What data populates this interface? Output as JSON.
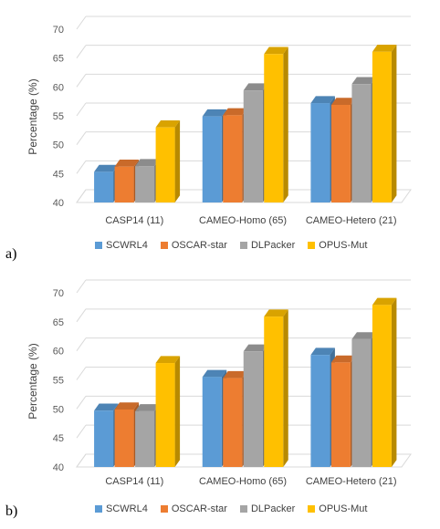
{
  "panels": [
    {
      "letter": "a)",
      "chart_data": {
        "type": "bar",
        "ylabel": "Percentage (%)",
        "ylim": [
          40,
          70
        ],
        "yticks": [
          40,
          45,
          50,
          55,
          60,
          65,
          70
        ],
        "grid": true,
        "legend_position": "bottom",
        "categories": [
          "CASP14 (11)",
          "CAMEO-Homo (65)",
          "CAMEO-Hetero (21)"
        ],
        "series": [
          {
            "name": "SCWRL4",
            "color": "#5b9bd5",
            "values": [
              45.3,
              54.9,
              57.2
            ]
          },
          {
            "name": "OSCAR-star",
            "color": "#ed7d31",
            "values": [
              46.2,
              55.1,
              56.9
            ]
          },
          {
            "name": "DLPacker",
            "color": "#a5a5a5",
            "values": [
              46.3,
              59.4,
              60.5
            ]
          },
          {
            "name": "OPUS-Mut",
            "color": "#ffc000",
            "values": [
              53.0,
              65.7,
              66.1
            ]
          }
        ]
      }
    },
    {
      "letter": "b)",
      "chart_data": {
        "type": "bar",
        "ylabel": "Percentage (%)",
        "ylim": [
          40,
          70
        ],
        "yticks": [
          40,
          45,
          50,
          55,
          60,
          65,
          70
        ],
        "grid": true,
        "legend_position": "bottom",
        "categories": [
          "CASP14 (11)",
          "CAMEO-Homo (65)",
          "CAMEO-Hetero (21)"
        ],
        "series": [
          {
            "name": "SCWRL4",
            "color": "#5b9bd5",
            "values": [
              49.7,
              55.5,
              59.3
            ]
          },
          {
            "name": "OSCAR-star",
            "color": "#ed7d31",
            "values": [
              49.9,
              55.3,
              58.0
            ]
          },
          {
            "name": "DLPacker",
            "color": "#a5a5a5",
            "values": [
              49.6,
              59.9,
              62.0
            ]
          },
          {
            "name": "OPUS-Mut",
            "color": "#ffc000",
            "values": [
              57.9,
              65.9,
              67.9
            ]
          }
        ]
      }
    }
  ]
}
